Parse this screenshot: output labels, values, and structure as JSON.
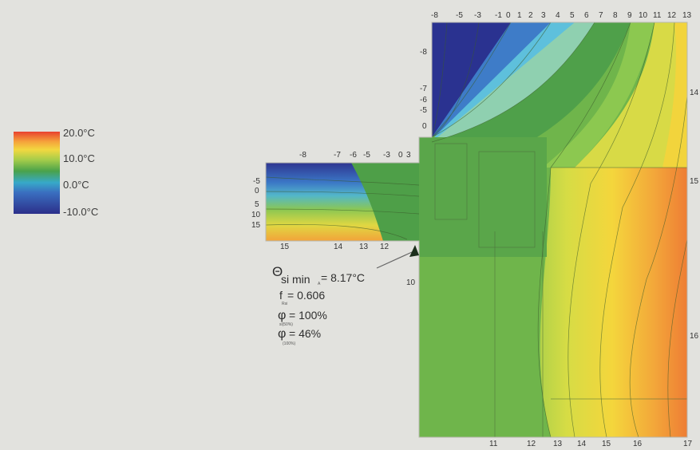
{
  "legend": {
    "labels": [
      "20.0°C",
      "10.0°C",
      "0.0°C",
      "-10.0°C"
    ]
  },
  "top_ticks": [
    "-8",
    "-5",
    "-3",
    "-1",
    "0",
    "1",
    "2",
    "3",
    "4",
    "5",
    "6",
    "7",
    "8",
    "9",
    "10",
    "11",
    "12",
    "13"
  ],
  "upper_left_ticks": [
    "-8",
    "-7",
    "-6",
    "-5",
    "0"
  ],
  "right_ticks": [
    "14",
    "15",
    "16"
  ],
  "sill_top_ticks": [
    "-8",
    "-7",
    "-6",
    "-5",
    "-3",
    "0",
    "3"
  ],
  "sill_left_ticks": [
    "-5",
    "0",
    "5",
    "10",
    "15"
  ],
  "sill_bottom_ticks": [
    "15",
    "14",
    "13",
    "12"
  ],
  "bottom_ticks": [
    "11",
    "12",
    "13",
    "14",
    "15",
    "16",
    "17"
  ],
  "wall_left_tick": "10",
  "results": {
    "theta_symbol": "Θ",
    "theta_sub": "si min",
    "theta_small_sub": "A",
    "theta_value": "= 8.17°C",
    "f_label": "f",
    "f_small_sub": "Rsi",
    "f_value": "= 0.606",
    "phi1_symbol": "φ",
    "phi1_small_sub": "si(50%)",
    "phi1_value": "= 100%",
    "phi2_symbol": "φ",
    "phi2_small_sub": "(100%)",
    "phi2_value": "= 46%"
  }
}
